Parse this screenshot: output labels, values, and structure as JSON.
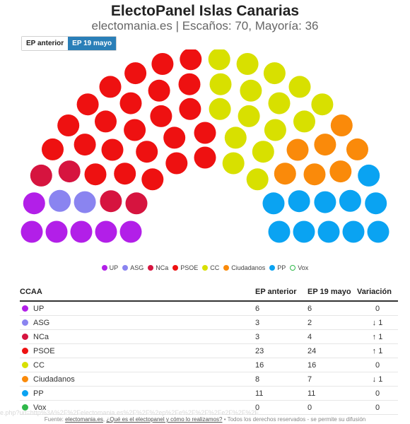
{
  "header": {
    "title": "ElectoPanel Islas Canarias",
    "subtitle": "electomania.es | Escaños: 70, Mayoría: 36"
  },
  "tabs": [
    {
      "label": "EP anterior",
      "active": false
    },
    {
      "label": "EP 19 mayo",
      "active": true
    }
  ],
  "chart_data": {
    "type": "parliament",
    "total_seats": 70,
    "majority": 36,
    "legend": [
      "UP",
      "ASG",
      "NCa",
      "PSOE",
      "CC",
      "Ciudadanos",
      "PP",
      "Vox"
    ],
    "series": [
      {
        "name": "UP",
        "color": "#b21fe8",
        "seats": 6
      },
      {
        "name": "ASG",
        "color": "#8a84f0",
        "seats": 2
      },
      {
        "name": "NCa",
        "color": "#d6143f",
        "seats": 4
      },
      {
        "name": "PSOE",
        "color": "#ee1111",
        "seats": 24
      },
      {
        "name": "CC",
        "color": "#d8e000",
        "seats": 16
      },
      {
        "name": "Ciudadanos",
        "color": "#fa8a0a",
        "seats": 7
      },
      {
        "name": "PP",
        "color": "#0aa3f2",
        "seats": 11
      },
      {
        "name": "Vox",
        "color": "#2fb84a",
        "seats": 0
      }
    ]
  },
  "table": {
    "headers": [
      "CCAA",
      "EP anterior",
      "EP 19 mayo",
      "Variación"
    ],
    "rows": [
      {
        "party": "UP",
        "color": "#b21fe8",
        "prev": "6",
        "curr": "6",
        "var": "0",
        "dir": "zero"
      },
      {
        "party": "ASG",
        "color": "#8a84f0",
        "prev": "3",
        "curr": "2",
        "var": "↓ 1",
        "dir": "down"
      },
      {
        "party": "NCa",
        "color": "#d6143f",
        "prev": "3",
        "curr": "4",
        "var": "↑ 1",
        "dir": "up"
      },
      {
        "party": "PSOE",
        "color": "#ee1111",
        "prev": "23",
        "curr": "24",
        "var": "↑ 1",
        "dir": "up"
      },
      {
        "party": "CC",
        "color": "#d8e000",
        "prev": "16",
        "curr": "16",
        "var": "0",
        "dir": "zero"
      },
      {
        "party": "Ciudadanos",
        "color": "#fa8a0a",
        "prev": "8",
        "curr": "7",
        "var": "↓ 1",
        "dir": "down"
      },
      {
        "party": "PP",
        "color": "#0aa3f2",
        "prev": "11",
        "curr": "11",
        "var": "0",
        "dir": "zero"
      },
      {
        "party": "Vox",
        "color": "#2fb84a",
        "prev": "0",
        "curr": "0",
        "var": "0",
        "dir": "zero"
      }
    ]
  },
  "footer": {
    "prefix": "Fuente: ",
    "source_link": "electomania.es",
    "sep": ", ",
    "about_link": "¿Qué es el electopanel y cómo lo realizamos?",
    "suffix": " • Todos los derechos reservados - se permite su difusión",
    "url_overlay": "e.php?url=http%3A%2F%2Felectomania.es%2F%2F%2ep%2Fe%2F%2F%2Fe2F%2F%2F"
  }
}
